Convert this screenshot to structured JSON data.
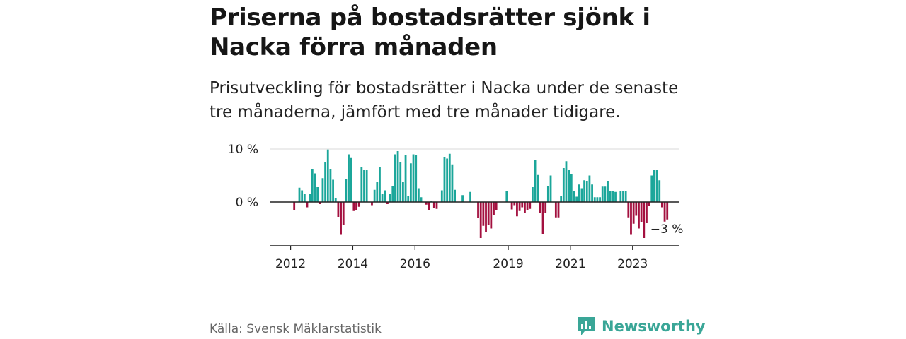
{
  "header": {
    "title": "Priserna på bostadsrätter sjönk i Nacka förra månaden",
    "subtitle": "Prisutveckling för bostadsrätter i Nacka under de senaste tre månaderna, jämfört med tre månader tidigare."
  },
  "footer": {
    "source": "Källa: Svensk Mäklarstatistik",
    "brand": "Newsworthy"
  },
  "colors": {
    "positive": "#1ba69a",
    "negative": "#a3103f",
    "grid": "#d9d9d9",
    "axis": "#222222",
    "brand": "#3aa697"
  },
  "chart_data": {
    "type": "bar",
    "title": "Prisutveckling för bostadsrätter i Nacka",
    "xlabel": "",
    "ylabel": "",
    "ylim": [
      -8,
      10
    ],
    "y_ticks": [
      {
        "value": 10,
        "label": "10 %"
      },
      {
        "value": 0,
        "label": "0 %"
      }
    ],
    "x_ticks": [
      {
        "year": 2012,
        "label": "2012"
      },
      {
        "year": 2014,
        "label": "2014"
      },
      {
        "year": 2016,
        "label": "2016"
      },
      {
        "year": 2019,
        "label": "2019"
      },
      {
        "year": 2021,
        "label": "2021"
      },
      {
        "year": 2023,
        "label": "2023"
      }
    ],
    "x_start": 2011.417,
    "period": "month",
    "annotation": {
      "label": "−3 %",
      "value": -3.2
    },
    "values": [
      null,
      null,
      null,
      null,
      null,
      null,
      null,
      null,
      -1.5,
      null,
      2.7,
      2.2,
      1.6,
      -1.0,
      1.6,
      6.2,
      5.4,
      2.8,
      -0.4,
      4.5,
      7.5,
      9.9,
      6.2,
      4.2,
      0.8,
      -2.8,
      -6.2,
      -4.3,
      4.3,
      9.0,
      8.3,
      -1.7,
      -1.6,
      -0.9,
      6.6,
      6.0,
      6.0,
      null,
      -0.6,
      2.3,
      3.8,
      6.6,
      1.6,
      2.2,
      -0.4,
      1.5,
      3.0,
      9.0,
      9.6,
      7.5,
      3.8,
      8.9,
      1.1,
      7.3,
      9.0,
      8.8,
      2.6,
      0.9,
      null,
      -0.5,
      -1.5,
      0.2,
      -1.2,
      -1.3,
      null,
      2.2,
      8.5,
      8.2,
      9.1,
      7.1,
      2.3,
      null,
      null,
      1.3,
      null,
      null,
      1.9,
      null,
      null,
      -3.0,
      -6.8,
      -4.5,
      -5.7,
      -4.4,
      -5.0,
      -2.5,
      -1.5,
      null,
      null,
      null,
      2.0,
      null,
      -1.4,
      -0.6,
      -2.7,
      -1.7,
      -1.0,
      -2.1,
      -1.5,
      -1.3,
      2.8,
      7.9,
      5.1,
      -2.0,
      -6.0,
      -2.0,
      3.0,
      5.0,
      null,
      -2.9,
      -2.9,
      1.2,
      6.4,
      7.7,
      6.0,
      5.2,
      2.0,
      1.0,
      3.3,
      2.6,
      4.1,
      4.0,
      5.0,
      3.3,
      0.9,
      0.9,
      0.9,
      2.9,
      2.9,
      4.0,
      2.0,
      2.0,
      1.9,
      null,
      2.0,
      2.0,
      2.0,
      -2.9,
      -6.2,
      -4.1,
      -2.6,
      -5.0,
      -3.8,
      -6.8,
      -4.0,
      -0.8,
      5.0,
      6.0,
      6.0,
      4.1,
      -1.0,
      -3.7,
      -3.3
    ]
  }
}
